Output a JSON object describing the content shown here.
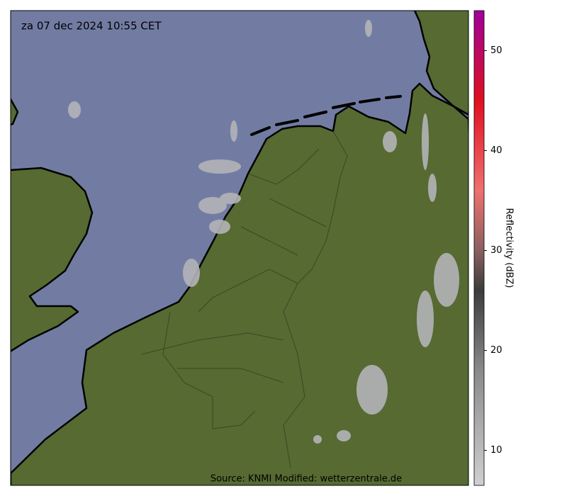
{
  "map": {
    "timestamp": "za 07 dec 2024 10:55 CET",
    "source": "Source: KNMI Modified: wetterzentrale.de"
  },
  "colorbar": {
    "label": "Reflectivity (dBZ)",
    "lim": [
      6.5,
      54
    ],
    "ticks": [
      10,
      20,
      30,
      40,
      50
    ],
    "stops": [
      {
        "value": 6.5,
        "color": "#d0d0d0"
      },
      {
        "value": 18,
        "color": "#8a8a8a"
      },
      {
        "value": 26,
        "color": "#3c3c3c"
      },
      {
        "value": 30,
        "color": "#8a6060"
      },
      {
        "value": 36,
        "color": "#f07070"
      },
      {
        "value": 45,
        "color": "#e01020"
      },
      {
        "value": 54,
        "color": "#a0009a"
      }
    ]
  }
}
